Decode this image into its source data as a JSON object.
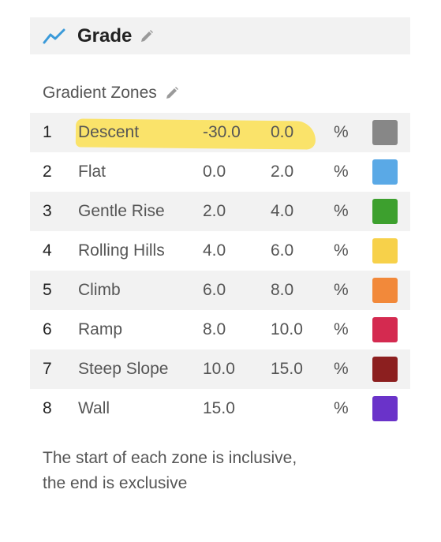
{
  "header": {
    "title": "Grade",
    "icon": "line-chart-icon",
    "edit_icon": "pencil-icon"
  },
  "section": {
    "title": "Gradient Zones",
    "edit_icon": "pencil-icon"
  },
  "zones": [
    {
      "num": "1",
      "name": "Descent",
      "start": "-30.0",
      "end": "0.0",
      "unit": "%",
      "color": "#878787"
    },
    {
      "num": "2",
      "name": "Flat",
      "start": "0.0",
      "end": "2.0",
      "unit": "%",
      "color": "#5aa9e6"
    },
    {
      "num": "3",
      "name": "Gentle Rise",
      "start": "2.0",
      "end": "4.0",
      "unit": "%",
      "color": "#3da02e"
    },
    {
      "num": "4",
      "name": "Rolling Hills",
      "start": "4.0",
      "end": "6.0",
      "unit": "%",
      "color": "#f7d14a"
    },
    {
      "num": "5",
      "name": "Climb",
      "start": "6.0",
      "end": "8.0",
      "unit": "%",
      "color": "#f2893a"
    },
    {
      "num": "6",
      "name": "Ramp",
      "start": "8.0",
      "end": "10.0",
      "unit": "%",
      "color": "#d42a50"
    },
    {
      "num": "7",
      "name": "Steep Slope",
      "start": "10.0",
      "end": "15.0",
      "unit": "%",
      "color": "#8c1f1f"
    },
    {
      "num": "8",
      "name": "Wall",
      "start": "15.0",
      "end": "",
      "unit": "%",
      "color": "#6a33c9"
    }
  ],
  "footnote": {
    "line1": "The start of each zone is inclusive,",
    "line2": "the end is exclusive"
  }
}
